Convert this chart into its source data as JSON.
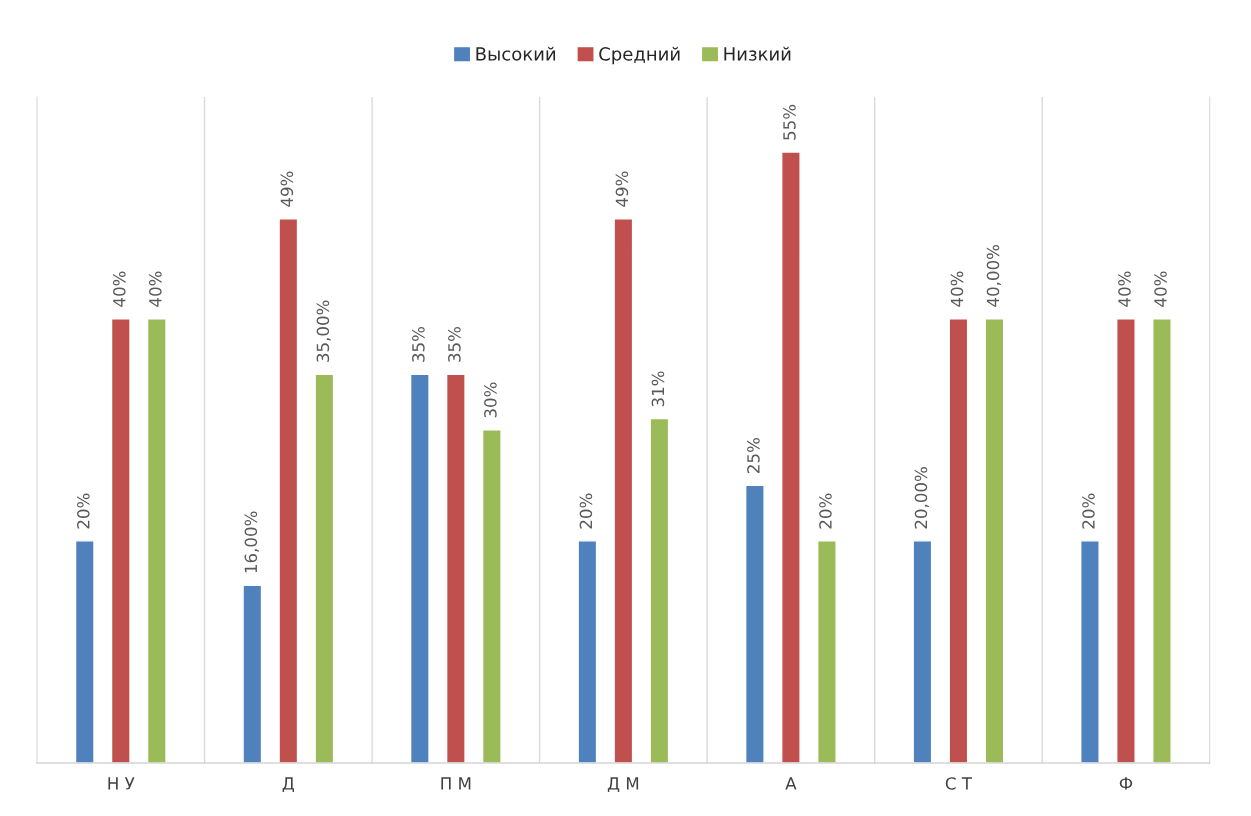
{
  "chart_data": {
    "type": "bar",
    "categories": [
      "Н У",
      "Д",
      "П М",
      "Д М",
      "А",
      "С Т",
      "Ф"
    ],
    "series": [
      {
        "name": "Высокий",
        "color": "#4f81bd",
        "values": [
          20,
          16,
          35,
          20,
          25,
          20,
          20
        ],
        "value_labels": [
          "20%",
          "16,00%",
          "35%",
          "20%",
          "25%",
          "20,00%",
          "20%"
        ]
      },
      {
        "name": "Средний",
        "color": "#c0504d",
        "values": [
          40,
          49,
          35,
          49,
          55,
          40,
          40
        ],
        "value_labels": [
          "40%",
          "49%",
          "35%",
          "49%",
          "55%",
          "40%",
          "40%"
        ]
      },
      {
        "name": "Низкий",
        "color": "#9bbb59",
        "values": [
          40,
          35,
          30,
          31,
          20,
          40,
          40
        ],
        "value_labels": [
          "40%",
          "35,00%",
          "30%",
          "31%",
          "20%",
          "40,00%",
          "40%"
        ]
      }
    ],
    "grid": "x",
    "legend": "top"
  }
}
